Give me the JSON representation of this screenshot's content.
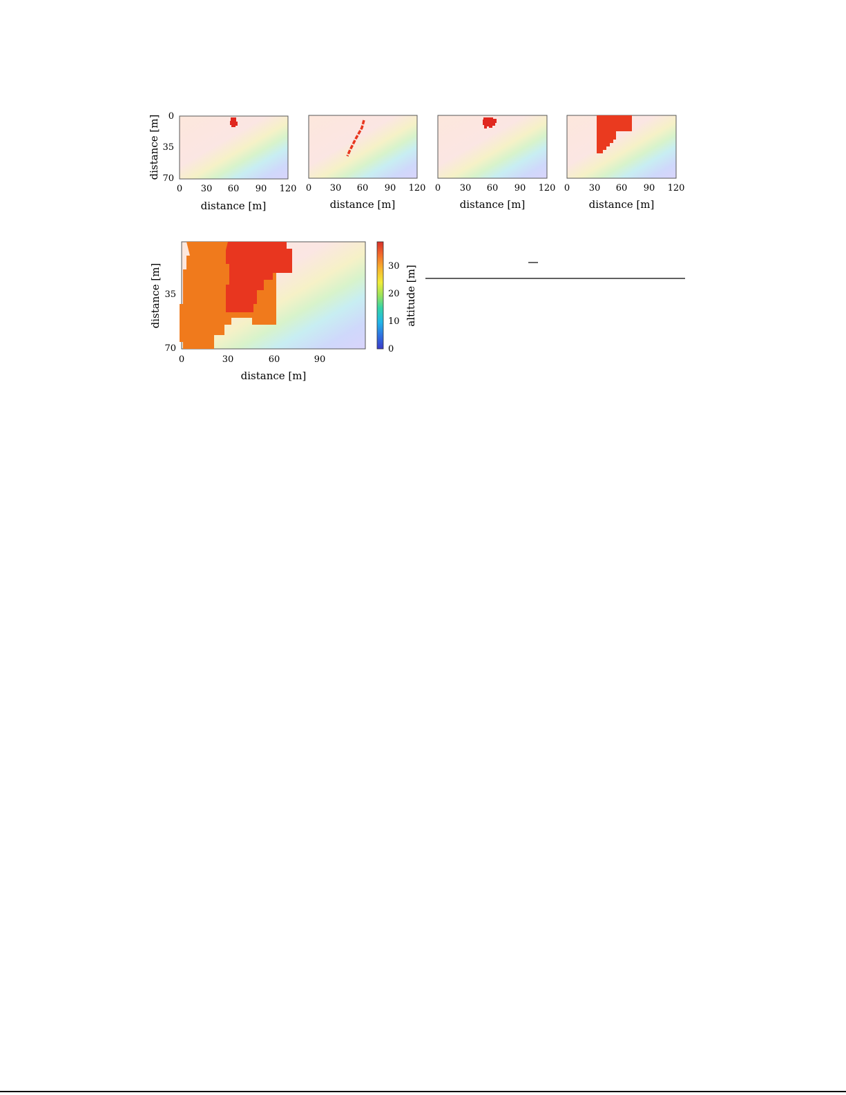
{
  "colorbar": {
    "label": "altitude [m]",
    "ticks": [
      "0",
      "10",
      "20",
      "30"
    ],
    "colors": [
      "#3b3bc8",
      "#2f6fe0",
      "#22b6e8",
      "#34d3a8",
      "#9be35a",
      "#f0ec3a",
      "#f7b52e",
      "#f26c2c",
      "#d7302a"
    ]
  },
  "chart_data": [
    {
      "type": "heatmap",
      "xlabel": "distance [m]",
      "ylabel": "distance [m]",
      "xticks": [
        "0",
        "30",
        "60",
        "90",
        "120"
      ],
      "yticks": [
        "0",
        "35",
        "70"
      ],
      "xlim": [
        0,
        120
      ],
      "ylim": [
        0,
        70
      ],
      "overlay": "small blob near x=60, y=0–10"
    },
    {
      "type": "heatmap",
      "xlabel": "distance [m]",
      "xticks": [
        "0",
        "30",
        "60",
        "90",
        "120"
      ],
      "xlim": [
        0,
        120
      ],
      "ylim": [
        0,
        70
      ],
      "overlay": "thin diagonal line from (60,5) to (45,45)"
    },
    {
      "type": "heatmap",
      "xlabel": "distance [m]",
      "xticks": [
        "0",
        "30",
        "60",
        "90",
        "120"
      ],
      "xlim": [
        0,
        120
      ],
      "ylim": [
        0,
        70
      ],
      "overlay": "blob near x=50–65, y=0–15"
    },
    {
      "type": "heatmap",
      "xlabel": "distance [m]",
      "xticks": [
        "0",
        "30",
        "60",
        "90",
        "120"
      ],
      "xlim": [
        0,
        120
      ],
      "ylim": [
        0,
        70
      ],
      "overlay": "block x=30–70, y=0–45"
    },
    {
      "type": "heatmap",
      "xlabel": "distance [m]",
      "ylabel": "distance [m]",
      "xticks": [
        "0",
        "30",
        "60",
        "90"
      ],
      "yticks": [
        "35",
        "70"
      ],
      "xlim": [
        0,
        120
      ],
      "ylim": [
        0,
        70
      ],
      "overlay": "large region covering upper-left"
    }
  ]
}
